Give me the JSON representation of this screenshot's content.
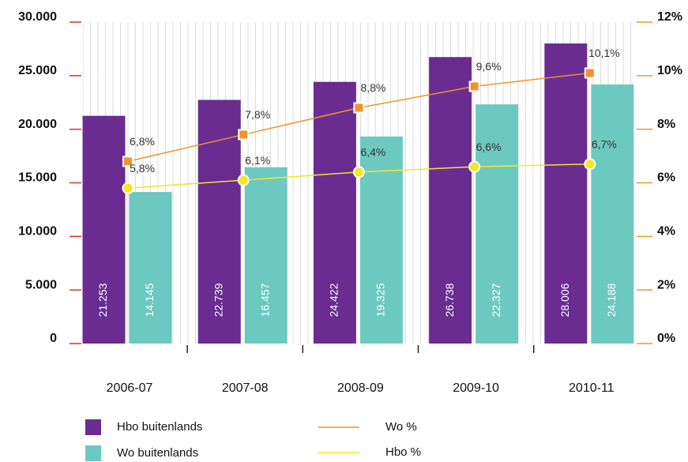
{
  "chart_data": {
    "type": "bar",
    "categories": [
      "2006-07",
      "2007-08",
      "2008-09",
      "2009-10",
      "2010-11"
    ],
    "series": [
      {
        "name": "Hbo buitenlands",
        "type": "bar",
        "color": "#6a2c91",
        "values": [
          21253,
          22739,
          24422,
          26738,
          28006
        ],
        "value_labels": [
          "21.253",
          "22.739",
          "24.422",
          "26.738",
          "28.006"
        ]
      },
      {
        "name": "Wo buitenlands",
        "type": "bar",
        "color": "#6cc9bf",
        "values": [
          14145,
          16457,
          19325,
          22327,
          24188
        ],
        "value_labels": [
          "14.145",
          "16.457",
          "19.325",
          "22.327",
          "24.188"
        ]
      },
      {
        "name": "Wo %",
        "type": "line",
        "axis": "y2",
        "color": "#f0942b",
        "marker": "square",
        "values": [
          6.8,
          7.8,
          8.8,
          9.6,
          10.1
        ],
        "value_labels": [
          "6,8%",
          "7,8%",
          "8,8%",
          "9,6%",
          "10,1%"
        ]
      },
      {
        "name": "Hbo %",
        "type": "line",
        "axis": "y2",
        "color": "#f5e61e",
        "marker": "circle",
        "values": [
          5.8,
          6.1,
          6.4,
          6.6,
          6.7
        ],
        "value_labels": [
          "5,8%",
          "6,1%",
          "6,4%",
          "6,6%",
          "6,7%"
        ]
      }
    ],
    "ylim": [
      0,
      30000
    ],
    "yticks": [
      0,
      {
        "value": 5000,
        "label": "5.000"
      },
      {
        "value": 10000,
        "label": "10.000"
      },
      {
        "value": 15000,
        "label": "15.000"
      },
      {
        "value": 20000,
        "label": "20.000"
      },
      {
        "value": 25000,
        "label": "25.000"
      },
      {
        "value": 30000,
        "label": "30.000"
      }
    ],
    "y2lim": [
      0,
      12
    ],
    "y2ticks": [
      {
        "value": 0,
        "label": "0%"
      },
      {
        "value": 2,
        "label": "2%"
      },
      {
        "value": 4,
        "label": "4%"
      },
      {
        "value": 6,
        "label": "6%"
      },
      {
        "value": 8,
        "label": "8%"
      },
      {
        "value": 10,
        "label": "10%"
      },
      {
        "value": 12,
        "label": "12%"
      }
    ],
    "left_tick_color": "#e03030",
    "right_tick_color": "#f0942b",
    "legend": "bottom"
  }
}
